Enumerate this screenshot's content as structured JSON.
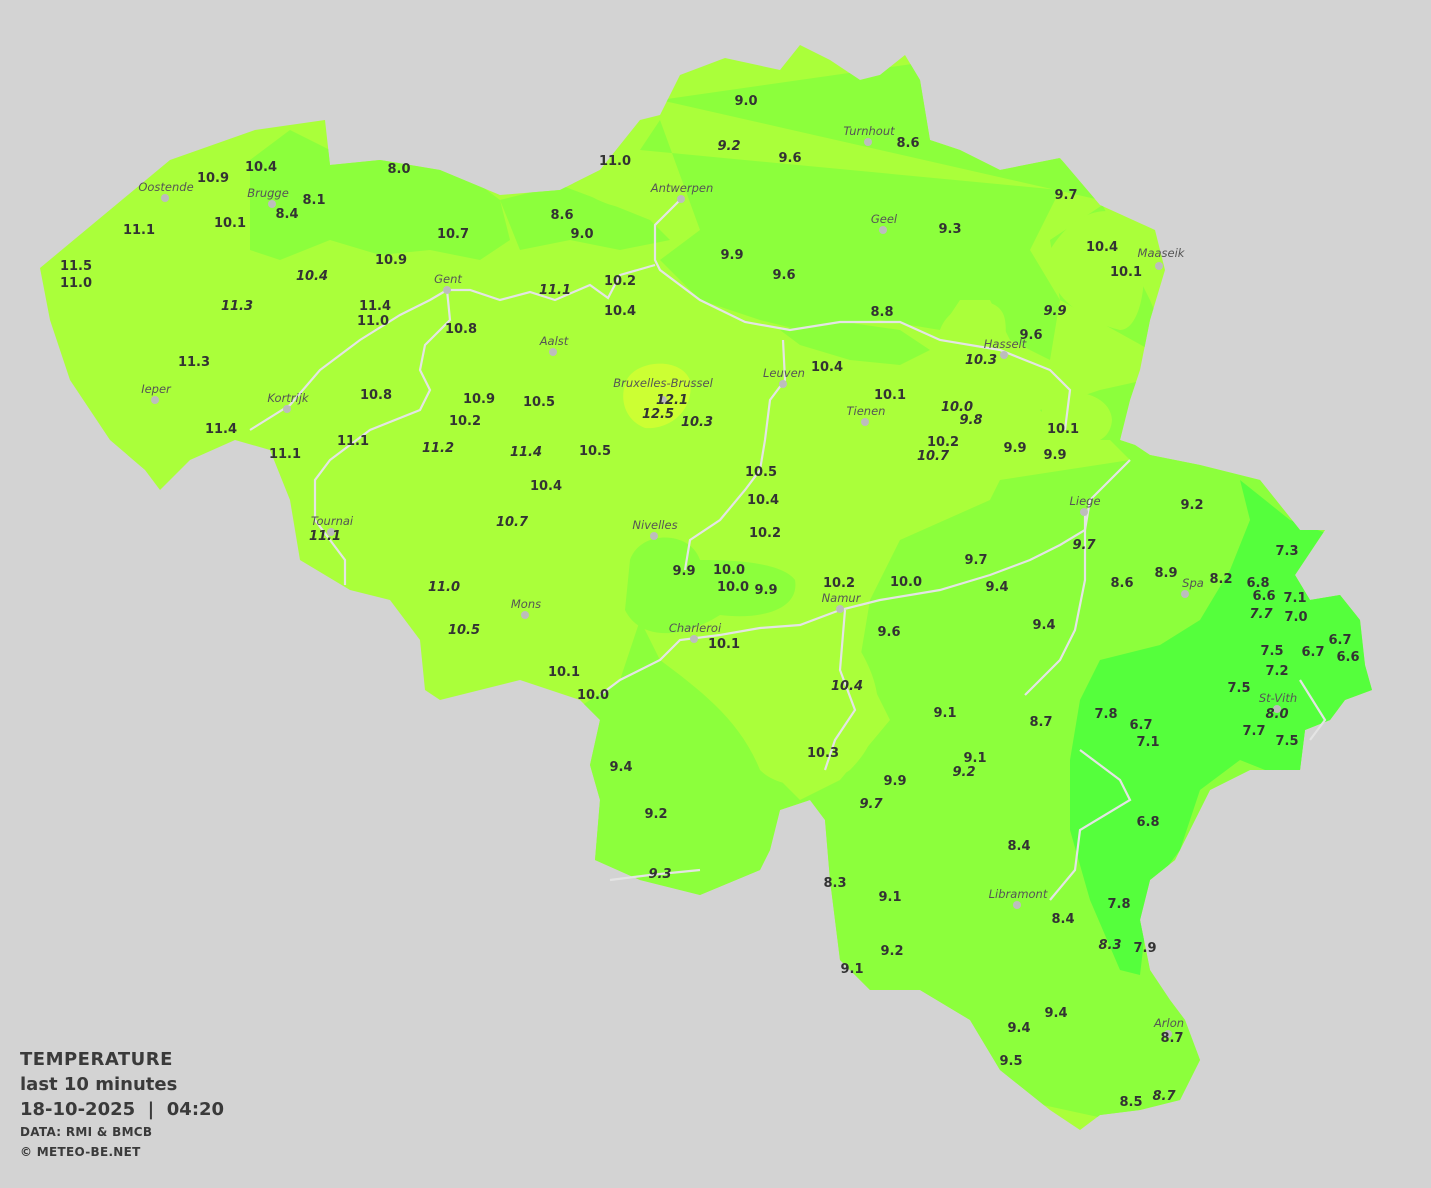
{
  "legend": {
    "title": "TEMPERATURE",
    "period": "last 10 minutes",
    "datetime": "18-10-2025  |  04:20",
    "data_source": "DATA: RMI & BMCB",
    "copyright": "© METEO-BE.NET"
  },
  "colors": {
    "background": "#d3d3d3",
    "zone_10_11": "#aaff3a",
    "zone_12": "#ccff33",
    "zone_9_10": "#8cff3c",
    "zone_7_8": "#55ff3c",
    "text": "#333333"
  },
  "cities": [
    "Oostende",
    "Brugge",
    "Antwerpen",
    "Turnhout",
    "Geel",
    "Maaseik",
    "Gent",
    "Aalst",
    "Hasselt",
    "Leuven",
    "Bruxelles-Brussel",
    "Tienen",
    "Ieper",
    "Kortrijk",
    "Liege",
    "Tournai",
    "Nivelles",
    "Spa",
    "Mons",
    "Namur",
    "Charleroi",
    "St-Vith",
    "Libramont",
    "Arlon"
  ],
  "stations": [
    {
      "v": "9.0"
    },
    {
      "v": "9.2",
      "italic": true
    },
    {
      "v": "9.6"
    },
    {
      "v": "8.6"
    },
    {
      "v": "10.4"
    },
    {
      "v": "10.9"
    },
    {
      "v": "8.0"
    },
    {
      "v": "11.0"
    },
    {
      "v": "8.1"
    },
    {
      "v": "8.4"
    },
    {
      "v": "11.1"
    },
    {
      "v": "10.1"
    },
    {
      "v": "8.6"
    },
    {
      "v": "9.0"
    },
    {
      "v": "10.7"
    },
    {
      "v": "9.7"
    },
    {
      "v": "9.3"
    },
    {
      "v": "9.9"
    },
    {
      "v": "9.6"
    },
    {
      "v": "10.4"
    },
    {
      "v": "10.1"
    },
    {
      "v": "11.5"
    },
    {
      "v": "11.0"
    },
    {
      "v": "10.9"
    },
    {
      "v": "10.4",
      "italic": true
    },
    {
      "v": "11.3",
      "italic": true
    },
    {
      "v": "11.4"
    },
    {
      "v": "11.0"
    },
    {
      "v": "11.1",
      "italic": true
    },
    {
      "v": "10.2"
    },
    {
      "v": "10.4"
    },
    {
      "v": "10.8"
    },
    {
      "v": "8.8"
    },
    {
      "v": "9.9",
      "italic": true
    },
    {
      "v": "9.6"
    },
    {
      "v": "10.3",
      "italic": true
    },
    {
      "v": "11.3"
    },
    {
      "v": "10.4"
    },
    {
      "v": "10.8"
    },
    {
      "v": "10.9"
    },
    {
      "v": "10.5"
    },
    {
      "v": "12.1",
      "italic": true
    },
    {
      "v": "12.5",
      "italic": true
    },
    {
      "v": "10.3",
      "italic": true
    },
    {
      "v": "10.1"
    },
    {
      "v": "10.0",
      "italic": true
    },
    {
      "v": "9.8",
      "italic": true
    },
    {
      "v": "10.2"
    },
    {
      "v": "11.4"
    },
    {
      "v": "11.1"
    },
    {
      "v": "11.1"
    },
    {
      "v": "11.2",
      "italic": true
    },
    {
      "v": "11.4",
      "italic": true
    },
    {
      "v": "10.5"
    },
    {
      "v": "10.2"
    },
    {
      "v": "10.7",
      "italic": true
    },
    {
      "v": "9.9"
    },
    {
      "v": "9.9"
    },
    {
      "v": "10.1"
    },
    {
      "v": "10.5"
    },
    {
      "v": "10.4"
    },
    {
      "v": "10.4"
    },
    {
      "v": "9.2"
    },
    {
      "v": "10.7",
      "italic": true
    },
    {
      "v": "11.1",
      "italic": true
    },
    {
      "v": "10.2"
    },
    {
      "v": "9.7",
      "italic": true
    },
    {
      "v": "7.3"
    },
    {
      "v": "9.7"
    },
    {
      "v": "9.9"
    },
    {
      "v": "10.0"
    },
    {
      "v": "10.0"
    },
    {
      "v": "9.9"
    },
    {
      "v": "11.0",
      "italic": true
    },
    {
      "v": "10.2"
    },
    {
      "v": "10.0"
    },
    {
      "v": "9.4"
    },
    {
      "v": "8.6"
    },
    {
      "v": "8.9"
    },
    {
      "v": "8.2"
    },
    {
      "v": "6.8"
    },
    {
      "v": "6.6"
    },
    {
      "v": "7.1"
    },
    {
      "v": "7.7",
      "italic": true
    },
    {
      "v": "7.0"
    },
    {
      "v": "10.5",
      "italic": true
    },
    {
      "v": "9.6"
    },
    {
      "v": "9.4"
    },
    {
      "v": "10.1"
    },
    {
      "v": "6.7"
    },
    {
      "v": "7.5"
    },
    {
      "v": "6.7"
    },
    {
      "v": "6.6"
    },
    {
      "v": "7.2"
    },
    {
      "v": "10.1"
    },
    {
      "v": "10.4",
      "italic": true
    },
    {
      "v": "7.5"
    },
    {
      "v": "10.0"
    },
    {
      "v": "8.0",
      "italic": true
    },
    {
      "v": "9.1"
    },
    {
      "v": "8.7"
    },
    {
      "v": "7.8"
    },
    {
      "v": "6.7"
    },
    {
      "v": "7.1"
    },
    {
      "v": "7.7"
    },
    {
      "v": "7.5"
    },
    {
      "v": "10.3"
    },
    {
      "v": "9.1"
    },
    {
      "v": "9.2",
      "italic": true
    },
    {
      "v": "9.4"
    },
    {
      "v": "9.9"
    },
    {
      "v": "9.7",
      "italic": true
    },
    {
      "v": "9.2"
    },
    {
      "v": "6.8"
    },
    {
      "v": "8.4"
    },
    {
      "v": "9.3",
      "italic": true
    },
    {
      "v": "8.3"
    },
    {
      "v": "9.1"
    },
    {
      "v": "7.8"
    },
    {
      "v": "8.4"
    },
    {
      "v": "8.3",
      "italic": true
    },
    {
      "v": "7.9"
    },
    {
      "v": "9.2"
    },
    {
      "v": "9.1"
    },
    {
      "v": "9.4"
    },
    {
      "v": "9.4"
    },
    {
      "v": "8.7"
    },
    {
      "v": "9.5"
    },
    {
      "v": "8.5"
    },
    {
      "v": "8.7",
      "italic": true
    }
  ]
}
